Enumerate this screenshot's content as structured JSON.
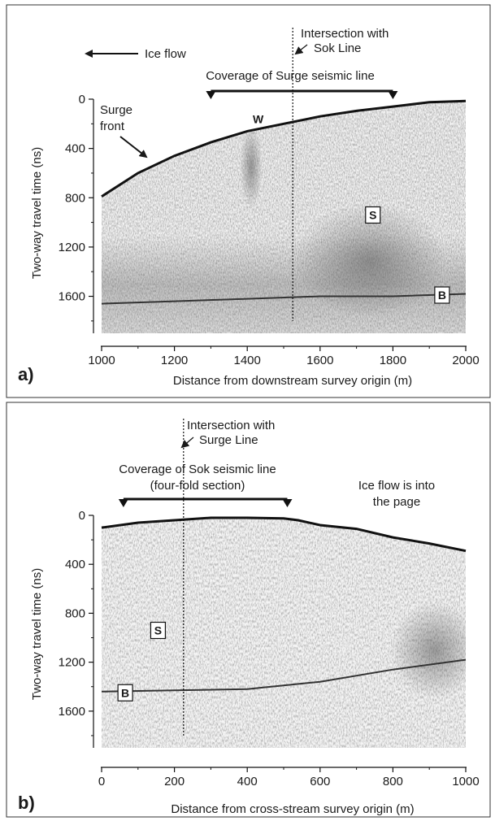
{
  "panels": [
    {
      "id": "a",
      "panel_label": "a)",
      "xlabel": "Distance from downstream survey origin (m)",
      "ylabel": "Two-way travel time (ns)",
      "xlim": [
        1000,
        2000
      ],
      "ylim": [
        0,
        1900
      ],
      "x_ticks": [
        1000,
        1200,
        1400,
        1600,
        1800,
        2000
      ],
      "y_ticks": [
        0,
        400,
        800,
        1200,
        1600
      ],
      "surface": [
        [
          1000,
          790
        ],
        [
          1100,
          600
        ],
        [
          1200,
          460
        ],
        [
          1300,
          350
        ],
        [
          1400,
          260
        ],
        [
          1500,
          200
        ],
        [
          1600,
          140
        ],
        [
          1700,
          95
        ],
        [
          1800,
          60
        ],
        [
          1900,
          25
        ],
        [
          2000,
          15
        ]
      ],
      "bed": [
        [
          1000,
          1660
        ],
        [
          1200,
          1640
        ],
        [
          1400,
          1620
        ],
        [
          1600,
          1600
        ],
        [
          1800,
          1600
        ],
        [
          2000,
          1580
        ]
      ],
      "coverage": {
        "text": "Coverage of Surge seismic line",
        "x_start": 1300,
        "x_end": 1800
      },
      "intersection": {
        "text_line1": "Intersection with",
        "text_line2": "Sok Line",
        "x": 1525
      },
      "flow_note": "Ice flow",
      "surge_front": {
        "line1": "Surge",
        "line2": "front"
      },
      "markers": [
        {
          "label": "W",
          "boxed": false,
          "x": 1430,
          "y": 160
        },
        {
          "label": "S",
          "boxed": true,
          "x": 1745,
          "y": 940
        },
        {
          "label": "B",
          "boxed": true,
          "x": 1935,
          "y": 1590
        }
      ]
    },
    {
      "id": "b",
      "panel_label": "b)",
      "xlabel": "Distance from cross-stream survey origin (m)",
      "ylabel": "Two-way travel time (ns)",
      "xlim": [
        0,
        1000
      ],
      "ylim": [
        0,
        1900
      ],
      "x_ticks": [
        0,
        200,
        400,
        600,
        800,
        1000
      ],
      "y_ticks": [
        0,
        400,
        800,
        1200,
        1600
      ],
      "surface": [
        [
          0,
          100
        ],
        [
          100,
          60
        ],
        [
          200,
          40
        ],
        [
          300,
          20
        ],
        [
          400,
          20
        ],
        [
          500,
          25
        ],
        [
          540,
          40
        ],
        [
          600,
          80
        ],
        [
          700,
          110
        ],
        [
          800,
          180
        ],
        [
          900,
          230
        ],
        [
          1000,
          290
        ]
      ],
      "bed": [
        [
          0,
          1440
        ],
        [
          200,
          1430
        ],
        [
          400,
          1420
        ],
        [
          600,
          1360
        ],
        [
          800,
          1260
        ],
        [
          1000,
          1180
        ]
      ],
      "coverage": {
        "text_line1": "Coverage of Sok seismic line",
        "text_line2": "(four-fold section)",
        "x_start": 60,
        "x_end": 510
      },
      "intersection": {
        "text_line1": "Intersection with",
        "text_line2": "Surge Line",
        "x": 225
      },
      "flow_note": {
        "line1": "Ice flow is into",
        "line2": "the page"
      },
      "markers": [
        {
          "label": "S",
          "boxed": true,
          "x": 155,
          "y": 940
        },
        {
          "label": "B",
          "boxed": true,
          "x": 65,
          "y": 1450
        }
      ]
    }
  ]
}
